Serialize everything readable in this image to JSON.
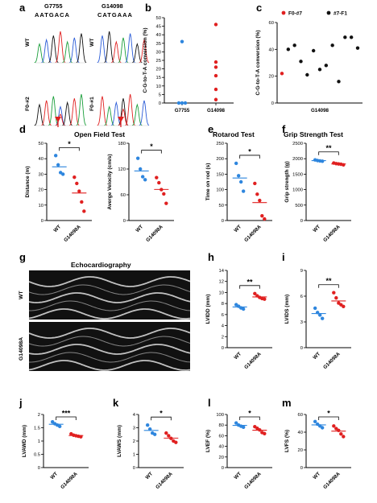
{
  "panel_labels": {
    "a": "a",
    "b": "b",
    "c": "c",
    "d": "d",
    "e": "e",
    "f": "f",
    "g": "g",
    "h": "h",
    "i": "i",
    "j": "j",
    "k": "k",
    "l": "l",
    "m": "m"
  },
  "panel_a": {
    "gene_left": "G7755",
    "gene_right": "G14098",
    "seq_left": "AATGACA",
    "seq_right": "CATGAAA",
    "rows": {
      "wt_left": "WT",
      "wt_right": "WT",
      "mut_left": "F0-#2",
      "mut_right": "F0-#1"
    }
  },
  "echo": {
    "title": "Echocardiography",
    "row_wt": "WT",
    "row_mut": "G14098A"
  },
  "colors": {
    "wt": "#2e86de",
    "mut": "#e02020",
    "c_f0": "#e02020",
    "c_f1": "#111111"
  },
  "chart_data": [
    {
      "id": "b",
      "type": "scatter",
      "ylabel": "C-G-to-T-A conversion (%)",
      "ylim": [
        0,
        50
      ],
      "yticks": [
        0,
        5,
        10,
        15,
        20,
        25,
        30,
        35,
        40,
        45,
        50
      ],
      "categories": [
        "G7755",
        "G14098"
      ],
      "series": [
        {
          "color": "#2e86de",
          "x": "G7755",
          "values": [
            36,
            0,
            0,
            0
          ]
        },
        {
          "color": "#e02020",
          "x": "G14098",
          "values": [
            46,
            24,
            21,
            16,
            8,
            2
          ]
        }
      ]
    },
    {
      "id": "c",
      "type": "scatter",
      "ylabel": "C-G-to-T-A conversion (%)",
      "ylim": [
        0,
        60
      ],
      "yticks": [
        0,
        20,
        40,
        60
      ],
      "xlabel": "G14098",
      "legend": [
        {
          "name": "F0-#7",
          "color": "#e02020"
        },
        {
          "name": "#7-F1",
          "color": "#111111"
        }
      ],
      "points": [
        {
          "v": 22,
          "s": 0
        },
        {
          "v": 40,
          "s": 1
        },
        {
          "v": 43,
          "s": 1
        },
        {
          "v": 31,
          "s": 1
        },
        {
          "v": 21,
          "s": 1
        },
        {
          "v": 39,
          "s": 1
        },
        {
          "v": 25,
          "s": 1
        },
        {
          "v": 28,
          "s": 1
        },
        {
          "v": 43,
          "s": 1
        },
        {
          "v": 16,
          "s": 1
        },
        {
          "v": 49,
          "s": 1
        },
        {
          "v": 49,
          "s": 1
        },
        {
          "v": 41,
          "s": 1
        }
      ]
    },
    {
      "id": "d1",
      "type": "scatter",
      "title": "Open Field Test",
      "ylabel": "Distance (m)",
      "ylim": [
        0,
        50
      ],
      "yticks": [
        0,
        10,
        20,
        30,
        40,
        50
      ],
      "categories": [
        "WT",
        "G14098A"
      ],
      "sig": "*",
      "groups": [
        [
          42,
          36,
          31,
          30
        ],
        [
          28,
          24,
          19,
          12,
          6
        ]
      ]
    },
    {
      "id": "d2",
      "type": "scatter",
      "ylabel": "Averge Velocity (cm/s)",
      "ylim": [
        0,
        180
      ],
      "yticks": [
        0,
        60,
        120,
        180
      ],
      "categories": [
        "WT",
        "G14098A"
      ],
      "sig": "*",
      "groups": [
        [
          145,
          120,
          102,
          95
        ],
        [
          100,
          88,
          72,
          62,
          40
        ]
      ]
    },
    {
      "id": "e",
      "type": "scatter",
      "title": "Rotarod Test",
      "ylabel": "Time on rod (s)",
      "ylim": [
        0,
        250
      ],
      "yticks": [
        0,
        50,
        100,
        150,
        200,
        250
      ],
      "categories": [
        "WT",
        "G14098A"
      ],
      "sig": "*",
      "groups": [
        [
          185,
          145,
          125,
          95
        ],
        [
          120,
          85,
          65,
          15,
          5
        ]
      ]
    },
    {
      "id": "f",
      "type": "scatter",
      "title": "Grip Strength Test",
      "ylabel": "Grip strength (g)",
      "ylim": [
        0,
        2500
      ],
      "yticks": [
        0,
        500,
        1000,
        1500,
        2000,
        2500
      ],
      "categories": [
        "WT",
        "G14098A"
      ],
      "sig": "**",
      "groups": [
        [
          1960,
          1940,
          1930,
          1920
        ],
        [
          1860,
          1840,
          1830,
          1820,
          1800
        ]
      ]
    },
    {
      "id": "h",
      "type": "scatter",
      "ylabel": "LVIDD (mm)",
      "ylim": [
        0,
        14
      ],
      "yticks": [
        0,
        2,
        4,
        6,
        8,
        10,
        12,
        14
      ],
      "categories": [
        "WT",
        "G14098A"
      ],
      "sig": "**",
      "groups": [
        [
          7.8,
          7.5,
          7.2,
          7.0
        ],
        [
          9.8,
          9.4,
          9.1,
          8.9,
          8.8
        ]
      ]
    },
    {
      "id": "i",
      "type": "scatter",
      "ylabel": "LVIDS (mm)",
      "ylim": [
        0,
        9
      ],
      "yticks": [
        0,
        3,
        6,
        9
      ],
      "categories": [
        "WT",
        "G14098A"
      ],
      "sig": "**",
      "groups": [
        [
          4.6,
          4.1,
          3.8,
          3.4
        ],
        [
          6.4,
          5.8,
          5.2,
          5.0,
          4.8
        ]
      ]
    },
    {
      "id": "j",
      "type": "scatter",
      "ylabel": "LVAWD (mm)",
      "ylim": [
        0,
        2.0
      ],
      "yticks": [
        0,
        0.5,
        1.0,
        1.5,
        2.0
      ],
      "categories": [
        "WT",
        "G14098A"
      ],
      "sig": "***",
      "groups": [
        [
          1.72,
          1.65,
          1.6,
          1.55
        ],
        [
          1.27,
          1.22,
          1.2,
          1.18,
          1.16
        ]
      ]
    },
    {
      "id": "k",
      "type": "scatter",
      "ylabel": "LVAWS (mm)",
      "ylim": [
        0,
        4
      ],
      "yticks": [
        0,
        1,
        2,
        3,
        4
      ],
      "categories": [
        "WT",
        "G14098A"
      ],
      "sig": "*",
      "groups": [
        [
          3.2,
          2.9,
          2.6,
          2.5
        ],
        [
          2.6,
          2.4,
          2.2,
          2.0,
          1.9
        ]
      ]
    },
    {
      "id": "l",
      "type": "scatter",
      "ylabel": "LVEF (%)",
      "ylim": [
        0,
        100
      ],
      "yticks": [
        0,
        20,
        40,
        60,
        80,
        100
      ],
      "categories": [
        "WT",
        "G14098A"
      ],
      "sig": "*",
      "groups": [
        [
          84,
          80,
          78,
          76
        ],
        [
          77,
          74,
          71,
          66,
          64
        ]
      ]
    },
    {
      "id": "m",
      "type": "scatter",
      "ylabel": "LVFS (%)",
      "ylim": [
        0,
        60
      ],
      "yticks": [
        0,
        20,
        40,
        60
      ],
      "categories": [
        "WT",
        "G14098A"
      ],
      "sig": "*",
      "groups": [
        [
          52,
          49,
          47,
          45
        ],
        [
          47,
          44,
          42,
          38,
          35
        ]
      ]
    }
  ]
}
